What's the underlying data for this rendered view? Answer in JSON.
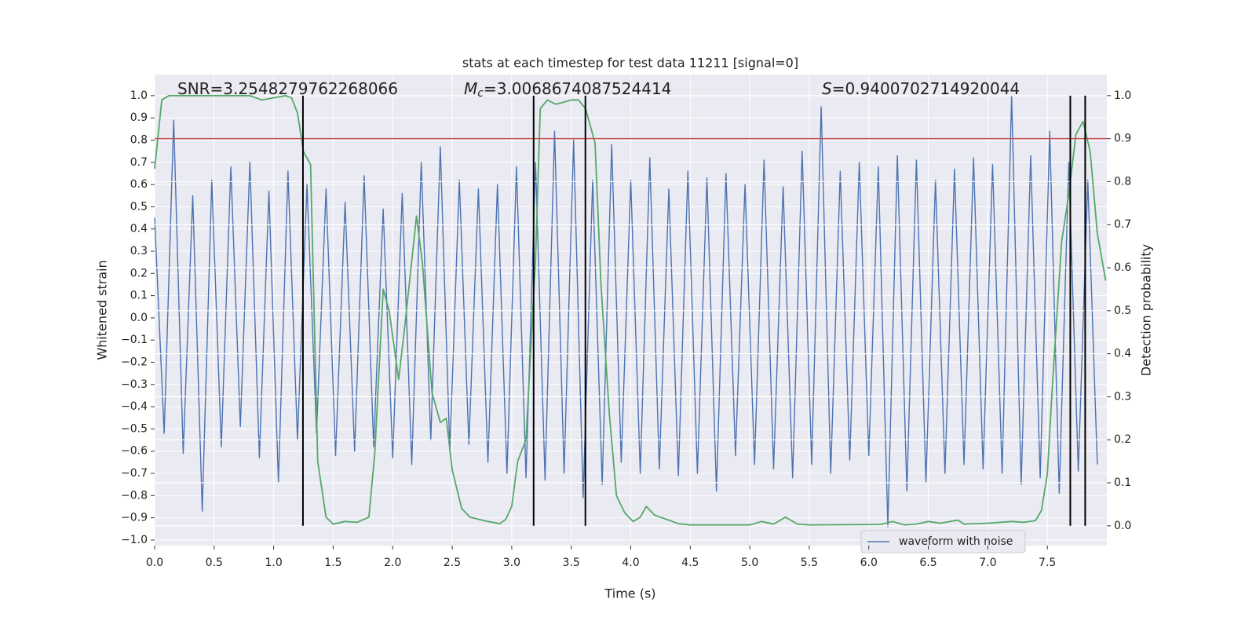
{
  "chart_data": {
    "type": "line",
    "title": "stats at each timestep for test data 11211 [signal=0]",
    "xlabel": "Time (s)",
    "ylabel": "Whitened strain",
    "y2label": "Detection probability",
    "annotations": [
      {
        "text": "SNR=3.2548279762268066"
      },
      {
        "symbol": "M",
        "subscript": "c",
        "text": "=3.0068674087524414"
      },
      {
        "symbol": "S",
        "text": "=0.9400702714920044"
      }
    ],
    "xlim": [
      0,
      8
    ],
    "ylim": [
      -1.025,
      1.095
    ],
    "y2lim": [
      -0.046,
      1.049
    ],
    "xticks": [
      {
        "value": 0,
        "label": "0.0"
      },
      0.5,
      {
        "value": 1,
        "label": "1.0"
      },
      1.5,
      {
        "value": 2,
        "label": "2.0"
      },
      2.5,
      {
        "value": 3,
        "label": "3.0"
      },
      3.5,
      {
        "value": 4,
        "label": "4.0"
      },
      4.5,
      {
        "value": 5,
        "label": "5.0"
      },
      5.5,
      {
        "value": 6,
        "label": "6.0"
      },
      6.5,
      {
        "value": 7,
        "label": "7.0"
      },
      7.5
    ],
    "yticks": [
      {
        "value": -1,
        "label": "−1.0"
      },
      {
        "value": -0.9,
        "label": "−0.9"
      },
      {
        "value": -0.8,
        "label": "−0.8"
      },
      {
        "value": -0.7,
        "label": "−0.7"
      },
      {
        "value": -0.6,
        "label": "−0.6"
      },
      {
        "value": -0.5,
        "label": "−0.5"
      },
      {
        "value": -0.4,
        "label": "−0.4"
      },
      {
        "value": -0.3,
        "label": "−0.3"
      },
      {
        "value": -0.2,
        "label": "−0.2"
      },
      {
        "value": -0.1,
        "label": "−0.1"
      },
      {
        "value": 0,
        "label": "0.0"
      },
      0.1,
      0.2,
      0.3,
      0.4,
      0.5,
      0.6,
      0.7,
      0.8,
      0.9,
      {
        "value": 1,
        "label": "1.0"
      }
    ],
    "y2ticks": [
      {
        "value": 0,
        "label": "0.0"
      },
      0.1,
      0.2,
      0.3,
      0.4,
      0.5,
      0.6,
      0.7,
      0.8,
      0.9,
      {
        "value": 1,
        "label": "1.0"
      }
    ],
    "grid": true,
    "legend": "lower right",
    "series": [
      {
        "name": "waveform with noise",
        "color": "#4c72b0",
        "x": [
          0,
          0.08,
          0.16,
          0.24,
          0.32,
          0.4,
          0.48,
          0.56,
          0.64,
          0.72,
          0.8,
          0.88,
          0.96,
          1.04,
          1.12,
          1.2,
          1.28,
          1.36,
          1.44,
          1.52,
          1.6,
          1.68,
          1.76,
          1.84,
          1.92,
          2,
          2.08,
          2.16,
          2.24,
          2.32,
          2.4,
          2.48,
          2.56,
          2.64,
          2.72,
          2.8,
          2.88,
          2.96,
          3.04,
          3.12,
          3.2,
          3.28,
          3.36,
          3.44,
          3.52,
          3.6,
          3.68,
          3.76,
          3.84,
          3.92,
          4,
          4.08,
          4.16,
          4.24,
          4.32,
          4.4,
          4.48,
          4.56,
          4.64,
          4.72,
          4.8,
          4.88,
          4.96,
          5.04,
          5.12,
          5.2,
          5.28,
          5.36,
          5.44,
          5.52,
          5.6,
          5.68,
          5.76,
          5.84,
          5.92,
          6,
          6.08,
          6.16,
          6.24,
          6.32,
          6.4,
          6.48,
          6.56,
          6.64,
          6.72,
          6.8,
          6.88,
          6.96,
          7.04,
          7.12,
          7.2,
          7.28,
          7.36,
          7.44,
          7.52,
          7.6,
          7.68,
          7.76,
          7.84,
          7.92
        ],
        "values": [
          0.45,
          -0.52,
          0.89,
          -0.61,
          0.55,
          -0.87,
          0.62,
          -0.58,
          0.68,
          -0.49,
          0.7,
          -0.63,
          0.57,
          -0.74,
          0.66,
          -0.55,
          0.6,
          -0.52,
          0.58,
          -0.62,
          0.52,
          -0.6,
          0.64,
          -0.58,
          0.49,
          -0.63,
          0.56,
          -0.66,
          0.7,
          -0.55,
          0.77,
          -0.6,
          0.62,
          -0.57,
          0.58,
          -0.65,
          0.6,
          -0.7,
          0.68,
          -0.72,
          0.7,
          -0.73,
          0.84,
          -0.7,
          0.8,
          -0.81,
          0.62,
          -0.75,
          0.78,
          -0.65,
          0.62,
          -0.7,
          0.72,
          -0.68,
          0.58,
          -0.71,
          0.66,
          -0.7,
          0.63,
          -0.78,
          0.65,
          -0.62,
          0.6,
          -0.66,
          0.71,
          -0.68,
          0.59,
          -0.72,
          0.75,
          -0.66,
          0.95,
          -0.7,
          0.66,
          -0.64,
          0.7,
          -0.62,
          0.68,
          -0.94,
          0.73,
          -0.78,
          0.71,
          -0.74,
          0.62,
          -0.7,
          0.67,
          -0.66,
          0.72,
          -0.68,
          0.69,
          -0.7,
          1.0,
          -0.75,
          0.73,
          -0.72,
          0.84,
          -0.79,
          0.7,
          -0.69,
          0.62,
          -0.66
        ]
      },
      {
        "color": "#55a868",
        "axis": "y2",
        "x": [
          0,
          0.06,
          0.12,
          0.5,
          0.8,
          0.9,
          1.0,
          1.1,
          1.15,
          1.2,
          1.25,
          1.31,
          1.37,
          1.44,
          1.5,
          1.6,
          1.7,
          1.8,
          1.85,
          1.92,
          1.97,
          2.05,
          2.1,
          2.2,
          2.25,
          2.33,
          2.4,
          2.45,
          2.5,
          2.58,
          2.65,
          2.8,
          2.9,
          2.95,
          3.0,
          3.05,
          3.12,
          3.2,
          3.24,
          3.3,
          3.37,
          3.44,
          3.5,
          3.56,
          3.62,
          3.7,
          3.75,
          3.82,
          3.88,
          3.95,
          4.02,
          4.08,
          4.13,
          4.2,
          4.3,
          4.4,
          4.5,
          5.0,
          5.1,
          5.2,
          5.3,
          5.4,
          5.5,
          6.1,
          6.2,
          6.3,
          6.4,
          6.5,
          6.6,
          6.75,
          6.8,
          7.0,
          7.2,
          7.3,
          7.4,
          7.45,
          7.5,
          7.55,
          7.62,
          7.68,
          7.74,
          7.8,
          7.86,
          7.92,
          7.99
        ],
        "values": [
          0.83,
          0.99,
          1.0,
          1.0,
          1.0,
          0.99,
          0.995,
          1.0,
          0.995,
          0.96,
          0.87,
          0.84,
          0.15,
          0.02,
          0.004,
          0.01,
          0.008,
          0.02,
          0.17,
          0.55,
          0.5,
          0.34,
          0.46,
          0.72,
          0.61,
          0.31,
          0.24,
          0.25,
          0.13,
          0.04,
          0.02,
          0.01,
          0.005,
          0.015,
          0.045,
          0.15,
          0.2,
          0.62,
          0.97,
          0.99,
          0.98,
          0.985,
          0.99,
          0.99,
          0.97,
          0.89,
          0.56,
          0.26,
          0.07,
          0.03,
          0.01,
          0.02,
          0.045,
          0.025,
          0.015,
          0.005,
          0.002,
          0.002,
          0.01,
          0.004,
          0.02,
          0.004,
          0.002,
          0.003,
          0.01,
          0.002,
          0.004,
          0.01,
          0.006,
          0.013,
          0.004,
          0.006,
          0.01,
          0.008,
          0.012,
          0.035,
          0.12,
          0.36,
          0.66,
          0.77,
          0.91,
          0.94,
          0.87,
          0.68,
          0.57
        ]
      }
    ],
    "hlines": [
      {
        "value": 0.9,
        "axis": "y2",
        "color": "#c44e52"
      }
    ],
    "vlines": {
      "x": [
        1.246,
        3.184,
        3.619,
        7.693,
        7.818
      ],
      "span": [
        0,
        1
      ],
      "axis": "y2",
      "color": "#000000"
    }
  }
}
